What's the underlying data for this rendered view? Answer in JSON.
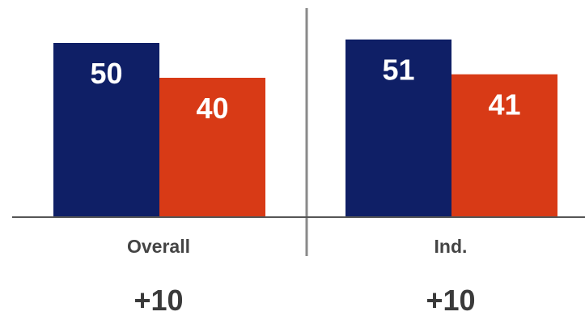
{
  "chart_data": {
    "type": "bar",
    "categories": [
      "Overall",
      "Ind."
    ],
    "series": [
      {
        "values": [
          50,
          51
        ],
        "color": "#0f1f66"
      },
      {
        "values": [
          40,
          41
        ],
        "color": "#d83a16"
      }
    ],
    "margins": [
      "+10",
      "+10"
    ],
    "ylim": [
      0,
      56
    ],
    "grid": false,
    "legend": "none",
    "axis_color": "#555555",
    "divider_color": "#8a8a8a"
  }
}
